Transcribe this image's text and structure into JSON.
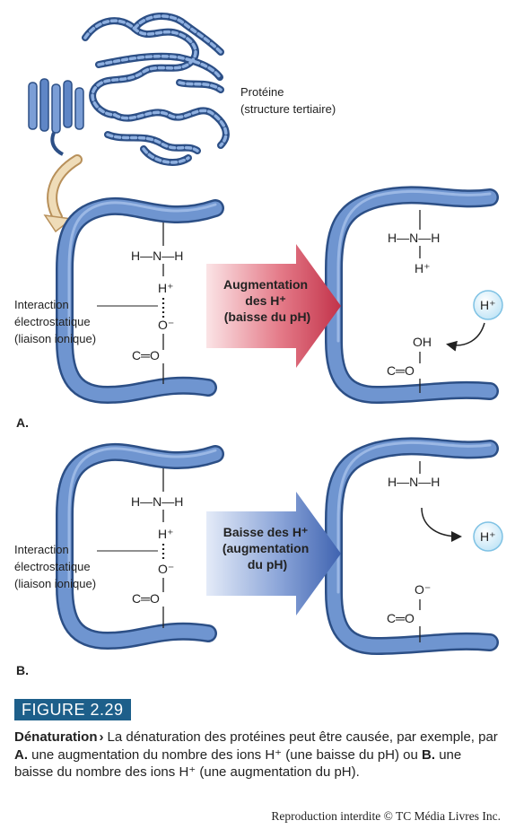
{
  "protein_label": [
    "Protéine",
    "(structure tertiaire)"
  ],
  "panel_a": {
    "letter": "A.",
    "arrow_text": [
      "Augmentation",
      "des H⁺",
      "(baisse du pH)"
    ],
    "left_amine": "H—N—H",
    "left_hplus": "H⁺",
    "left_o_minus": "O⁻",
    "left_carbonyl": "C═O",
    "right_amine": "H—N—H",
    "right_hplus": "H⁺",
    "right_oh": "OH",
    "right_carbonyl": "C═O",
    "free_ion": "H⁺"
  },
  "panel_b": {
    "letter": "B.",
    "arrow_text": [
      "Baisse des H⁺",
      "(augmentation",
      "du pH)"
    ],
    "left_amine": "H—N—H",
    "left_hplus": "H⁺",
    "left_o_minus": "O⁻",
    "left_carbonyl": "C═O",
    "right_amine": "H—N—H",
    "right_o_minus": "O⁻",
    "right_carbonyl": "C═O",
    "free_ion": "H⁺"
  },
  "interaction_label": [
    "Interaction",
    "électrostatique",
    "(liaison ionique)"
  ],
  "figure": {
    "badge": "FIGURE 2.29",
    "title": "Dénaturation",
    "chevron": "›",
    "caption_1": "La dénaturation des protéines peut être causée, par exemple, par ",
    "a_marker": "A.",
    "caption_2": " une augmentation du nombre des ions H⁺ (une baisse du pH) ou ",
    "b_marker": "B.",
    "caption_3": " une baisse du nombre des ions H⁺ (une augmentation du pH)."
  },
  "credit": "Reproduction interdite © TC Média Livres Inc.",
  "colors": {
    "strand": "#5f86c6",
    "strand_edge": "#2c4f86",
    "acid_arrow": "#c2334a",
    "base_arrow": "#3f63b0",
    "ion_fill": "#d7eefa",
    "badge": "#1d5f8a"
  }
}
